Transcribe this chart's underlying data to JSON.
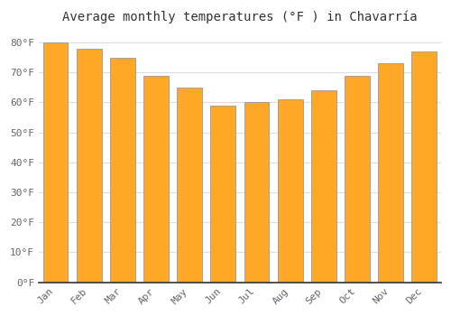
{
  "title": "Average monthly temperatures (°F ) in Chavarría",
  "months": [
    "Jan",
    "Feb",
    "Mar",
    "Apr",
    "May",
    "Jun",
    "Jul",
    "Aug",
    "Sep",
    "Oct",
    "Nov",
    "Dec"
  ],
  "values": [
    80,
    78,
    75,
    69,
    65,
    59,
    60,
    61,
    64,
    69,
    73,
    77
  ],
  "bar_color": "#FFA726",
  "bar_edge_color": "#999999",
  "background_color": "#FFFFFF",
  "grid_color": "#DDDDDD",
  "ylim": [
    0,
    84
  ],
  "yticks": [
    0,
    10,
    20,
    30,
    40,
    50,
    60,
    70,
    80
  ],
  "title_fontsize": 10,
  "tick_fontsize": 8,
  "font_family": "monospace",
  "bar_width": 0.75
}
